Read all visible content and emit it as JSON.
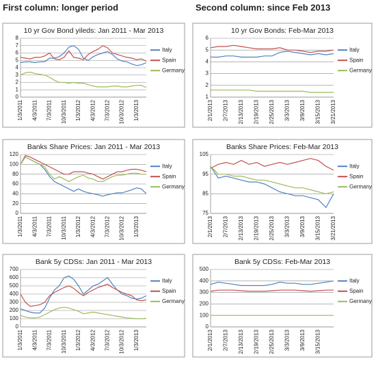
{
  "headers": [
    "First column: longer period",
    "Second column: since Feb 2013"
  ],
  "chart_data": [
    {
      "type": "line",
      "title": "10 yr Gov Bond yileds: Jan 2011 - Mar 2013",
      "categories": [
        "1/3/2011",
        null,
        null,
        "4/3/2011",
        null,
        null,
        "7/3/2011",
        null,
        null,
        "10/3/2011",
        null,
        null,
        "1/3/2012",
        null,
        null,
        "4/3/2012",
        null,
        null,
        "7/3/2012",
        null,
        null,
        "10/3/2012",
        null,
        null,
        "1/3/2013",
        null,
        null
      ],
      "series": [
        {
          "name": "Italy",
          "color": "#4f81bd",
          "values": [
            4.7,
            4.8,
            4.8,
            4.7,
            4.8,
            4.8,
            5.3,
            5.3,
            5.5,
            6.0,
            6.8,
            7.0,
            6.5,
            5.3,
            5.0,
            5.5,
            5.8,
            6.0,
            6.2,
            5.8,
            5.2,
            4.9,
            4.8,
            4.5,
            4.3,
            4.4,
            4.7
          ]
        },
        {
          "name": "Spain",
          "color": "#c0504d",
          "values": [
            5.4,
            5.3,
            5.2,
            5.4,
            5.4,
            5.6,
            6.0,
            5.2,
            5.1,
            5.4,
            6.3,
            5.4,
            5.3,
            5.1,
            5.8,
            6.2,
            6.5,
            7.0,
            6.7,
            6.0,
            5.8,
            5.6,
            5.4,
            5.3,
            5.1,
            5.2,
            4.9
          ]
        },
        {
          "name": "Germany",
          "color": "#9bbb59",
          "values": [
            3.0,
            3.3,
            3.4,
            3.2,
            3.1,
            3.0,
            2.7,
            2.3,
            2.0,
            2.0,
            1.9,
            2.0,
            1.9,
            1.9,
            1.7,
            1.5,
            1.4,
            1.4,
            1.4,
            1.5,
            1.5,
            1.4,
            1.4,
            1.5,
            1.6,
            1.6,
            1.3
          ]
        }
      ],
      "ylim": [
        0,
        8
      ],
      "yticks": [
        0,
        1,
        2,
        3,
        4,
        5,
        6,
        7,
        8
      ],
      "grid": true,
      "legend": "right"
    },
    {
      "type": "line",
      "title": "10 yr Gov Bonds: Feb-Mar 2013",
      "categories": [
        "2/1/2013",
        null,
        "2/7/2013",
        null,
        "2/13/2013",
        null,
        "2/19/2013",
        null,
        "2/25/2013",
        null,
        "3/3/2013",
        null,
        "3/9/2013",
        null,
        "3/15/2013",
        null,
        "3/21/2013"
      ],
      "series": [
        {
          "name": "Italy",
          "color": "#4f81bd",
          "values": [
            4.4,
            4.4,
            4.5,
            4.5,
            4.4,
            4.4,
            4.4,
            4.5,
            4.5,
            4.8,
            4.9,
            4.8,
            4.7,
            4.6,
            4.7,
            4.6,
            4.7
          ]
        },
        {
          "name": "Spain",
          "color": "#c0504d",
          "values": [
            5.2,
            5.3,
            5.3,
            5.4,
            5.3,
            5.2,
            5.1,
            5.1,
            5.1,
            5.2,
            5.0,
            5.0,
            4.9,
            4.8,
            4.9,
            4.9,
            5.0
          ]
        },
        {
          "name": "Germany",
          "color": "#9bbb59",
          "values": [
            1.6,
            1.6,
            1.6,
            1.6,
            1.6,
            1.6,
            1.5,
            1.5,
            1.5,
            1.5,
            1.5,
            1.5,
            1.5,
            1.4,
            1.4,
            1.4,
            1.4
          ]
        }
      ],
      "ylim": [
        1,
        6
      ],
      "yticks": [
        1,
        2,
        3,
        4,
        5,
        6
      ],
      "grid": true,
      "legend": "right"
    },
    {
      "type": "line",
      "title": "Banks Share Prices: Jan 2011 - Mar 2013",
      "categories": [
        "1/3/2011",
        null,
        null,
        "4/3/2011",
        null,
        null,
        "7/3/2011",
        null,
        null,
        "10/3/2011",
        null,
        null,
        "1/3/2012",
        null,
        null,
        "4/3/2012",
        null,
        null,
        "7/3/2012",
        null,
        null,
        "10/3/2012",
        null,
        null,
        "1/3/2013",
        null,
        null
      ],
      "series": [
        {
          "name": "Italy",
          "color": "#4f81bd",
          "values": [
            100,
            115,
            110,
            105,
            100,
            90,
            75,
            65,
            60,
            55,
            50,
            45,
            50,
            45,
            42,
            40,
            38,
            35,
            38,
            40,
            42,
            42,
            45,
            48,
            52,
            50,
            40
          ]
        },
        {
          "name": "Spain",
          "color": "#c0504d",
          "values": [
            100,
            118,
            115,
            110,
            105,
            100,
            95,
            90,
            85,
            80,
            80,
            85,
            85,
            85,
            82,
            80,
            75,
            70,
            75,
            80,
            85,
            85,
            88,
            90,
            90,
            88,
            85
          ]
        },
        {
          "name": "Germany",
          "color": "#9bbb59",
          "values": [
            100,
            115,
            110,
            105,
            100,
            95,
            80,
            70,
            75,
            70,
            65,
            70,
            75,
            78,
            72,
            70,
            65,
            65,
            70,
            75,
            78,
            78,
            80,
            82,
            82,
            80,
            80
          ]
        }
      ],
      "ylim": [
        0,
        120
      ],
      "yticks": [
        0,
        20,
        40,
        60,
        80,
        100,
        120
      ],
      "grid": true,
      "legend": "right"
    },
    {
      "type": "line",
      "title": "Banks Share Prices: Feb-Mar 2013",
      "categories": [
        "2/1/2013",
        null,
        "2/7/2013",
        null,
        "2/13/2013",
        null,
        "2/19/2013",
        null,
        "2/25/2013",
        null,
        "3/3/2013",
        null,
        "3/9/2013",
        null,
        "3/15/2013",
        null,
        "3/21/2013"
      ],
      "series": [
        {
          "name": "Italy",
          "color": "#4f81bd",
          "values": [
            99,
            93,
            94,
            93,
            92,
            91,
            91,
            90,
            88,
            86,
            85,
            84,
            84,
            83,
            82,
            78,
            85
          ]
        },
        {
          "name": "Spain",
          "color": "#c0504d",
          "values": [
            98,
            100,
            101,
            100,
            102,
            100,
            101,
            99,
            100,
            101,
            100,
            101,
            102,
            103,
            102,
            99,
            97
          ]
        },
        {
          "name": "Germany",
          "color": "#9bbb59",
          "values": [
            99,
            95,
            95,
            94,
            94,
            93,
            92,
            92,
            91,
            90,
            89,
            88,
            88,
            87,
            86,
            85,
            86
          ]
        }
      ],
      "ylim": [
        75,
        105
      ],
      "yticks": [
        75,
        85,
        95,
        105
      ],
      "grid": true,
      "legend": "right"
    },
    {
      "type": "line",
      "title": "Bank 5y CDSs: Jan 2011 - Mar 2013",
      "categories": [
        "1/3/2011",
        null,
        null,
        "4/3/2011",
        null,
        null,
        "7/3/2011",
        null,
        null,
        "10/3/2011",
        null,
        null,
        "1/3/2012",
        null,
        null,
        "4/3/2012",
        null,
        null,
        "7/3/2012",
        null,
        null,
        "10/3/2012",
        null,
        null,
        "1/3/2013",
        null,
        null
      ],
      "series": [
        {
          "name": "Italy",
          "color": "#4f81bd",
          "values": [
            220,
            200,
            180,
            170,
            170,
            230,
            350,
            450,
            500,
            600,
            620,
            580,
            500,
            400,
            450,
            500,
            520,
            560,
            600,
            520,
            450,
            400,
            380,
            350,
            340,
            350,
            380
          ]
        },
        {
          "name": "Spain",
          "color": "#c0504d",
          "values": [
            400,
            300,
            250,
            260,
            270,
            300,
            380,
            420,
            450,
            480,
            500,
            470,
            420,
            380,
            420,
            450,
            480,
            500,
            520,
            480,
            450,
            420,
            400,
            380,
            330,
            320,
            330
          ]
        },
        {
          "name": "Germany",
          "color": "#9bbb59",
          "values": [
            140,
            120,
            110,
            110,
            120,
            150,
            180,
            210,
            230,
            240,
            230,
            210,
            190,
            160,
            170,
            180,
            170,
            160,
            150,
            140,
            130,
            120,
            110,
            105,
            100,
            100,
            105
          ]
        }
      ],
      "ylim": [
        0,
        700
      ],
      "yticks": [
        0,
        100,
        200,
        300,
        400,
        500,
        600,
        700
      ],
      "grid": true,
      "legend": "right"
    },
    {
      "type": "line",
      "title": "Bank 5y CDSs: Feb-Mar 2013",
      "categories": [
        "2/1/2013",
        null,
        "2/7/2013",
        null,
        "2/13/2013",
        null,
        "2/19/2013",
        null,
        "2/25/2013",
        null,
        "3/3/2013",
        null,
        "3/9/2013",
        null,
        "3/15/2013",
        null,
        null
      ],
      "series": [
        {
          "name": "Italy",
          "color": "#4f81bd",
          "values": [
            370,
            390,
            380,
            370,
            360,
            360,
            360,
            360,
            370,
            390,
            380,
            380,
            370,
            370,
            380,
            390,
            400
          ]
        },
        {
          "name": "Spain",
          "color": "#c0504d",
          "values": [
            310,
            320,
            320,
            320,
            315,
            310,
            310,
            310,
            315,
            320,
            320,
            320,
            315,
            310,
            315,
            320,
            320
          ]
        },
        {
          "name": "Germany",
          "color": "#9bbb59",
          "values": [
            100,
            100,
            100,
            100,
            100,
            100,
            100,
            100,
            100,
            100,
            100,
            100,
            100,
            100,
            100,
            100,
            100
          ]
        }
      ],
      "ylim": [
        0,
        500
      ],
      "yticks": [
        0,
        100,
        200,
        300,
        400,
        500
      ],
      "grid": true,
      "legend": "right"
    }
  ]
}
